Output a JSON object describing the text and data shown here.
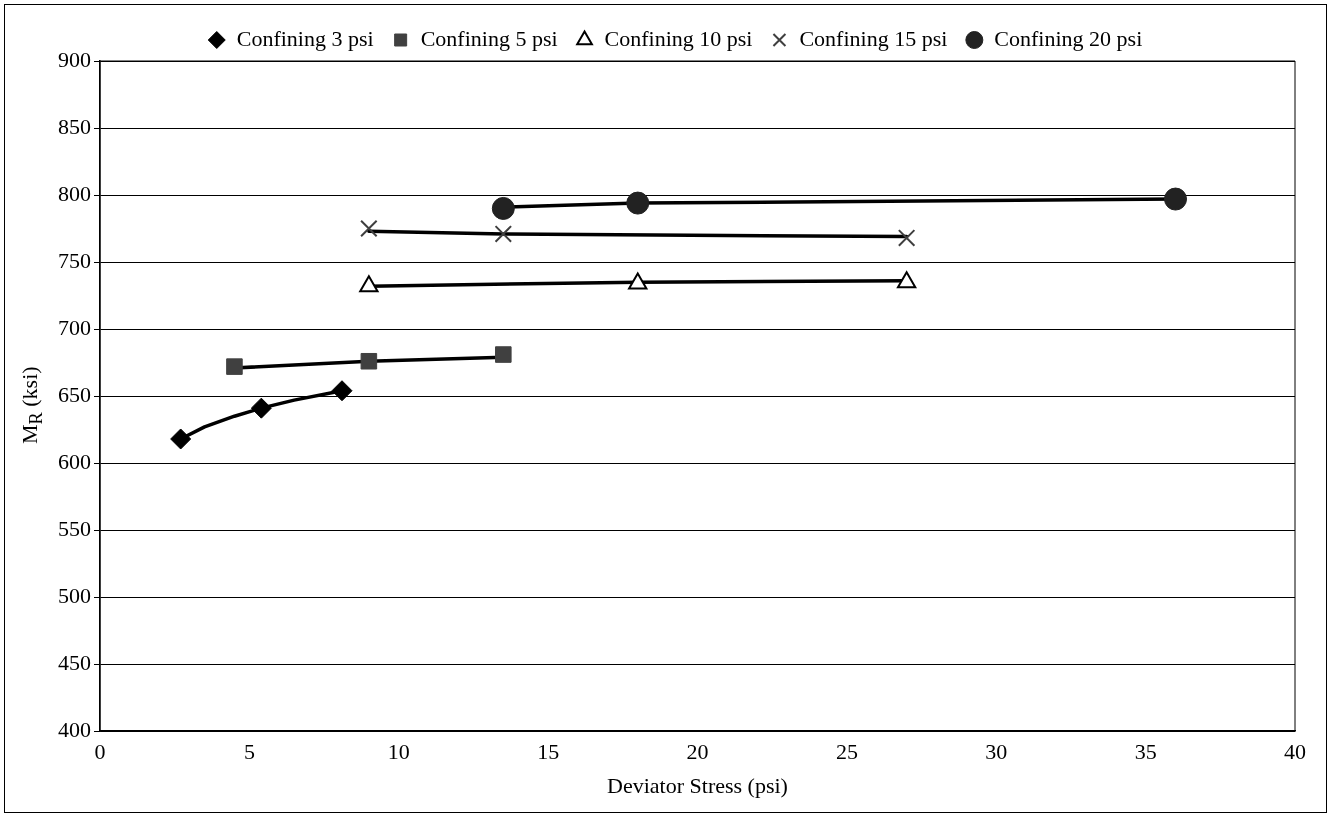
{
  "chart_data": {
    "type": "scatter",
    "xlabel": "Deviator Stress (psi)",
    "ylabel": "M$_{R}$ (ksi)",
    "xlim": [
      0,
      40
    ],
    "xticks": [
      0,
      5,
      10,
      15,
      20,
      25,
      30,
      35,
      40
    ],
    "ylim": [
      400,
      900
    ],
    "yticks": [
      400,
      450,
      500,
      550,
      600,
      650,
      700,
      750,
      800,
      850,
      900
    ],
    "grid": "y",
    "legend": "top",
    "series": [
      {
        "name": "Confining 3 psi",
        "color": "#000000",
        "marker": "diamond",
        "x": [
          2.7,
          5.4,
          8.1
        ],
        "values": [
          618,
          641,
          654
        ]
      },
      {
        "name": "Confining 5 psi",
        "color": "#404040",
        "marker": "square",
        "x": [
          4.5,
          9,
          13.5
        ],
        "values": [
          672,
          676,
          681
        ]
      },
      {
        "name": "Confining 10 psi",
        "color": "#000000",
        "marker": "triangle",
        "x": [
          9,
          18,
          27
        ],
        "values": [
          732,
          734,
          735
        ]
      },
      {
        "name": "Confining 15 psi",
        "color": "#404040",
        "marker": "cross",
        "x": [
          9,
          13.5,
          27
        ],
        "values": [
          775,
          771,
          768
        ]
      },
      {
        "name": "Confining 20 psi",
        "color": "#222222",
        "marker": "circle",
        "x": [
          13.5,
          18,
          36
        ],
        "values": [
          790,
          794,
          797
        ]
      },
      {
        "type": "line",
        "color": "#000000",
        "marker": "none",
        "x": [
          2.7,
          3.5,
          4.5,
          5.4,
          6.5,
          8.1
        ],
        "values": [
          618,
          627,
          635,
          641,
          647,
          654
        ]
      },
      {
        "type": "line",
        "color": "#000000",
        "marker": "none",
        "x": [
          4.5,
          9,
          13.5
        ],
        "values": [
          671,
          676,
          679
        ]
      },
      {
        "type": "line",
        "color": "#000000",
        "marker": "none",
        "x": [
          9,
          18,
          27
        ],
        "values": [
          732,
          735,
          736
        ]
      },
      {
        "type": "line",
        "color": "#000000",
        "marker": "none",
        "x": [
          9,
          13.5,
          27
        ],
        "values": [
          773,
          771,
          769
        ]
      },
      {
        "type": "line",
        "color": "#000000",
        "marker": "none",
        "x": [
          13.5,
          18,
          36
        ],
        "values": [
          791,
          794,
          797
        ]
      }
    ]
  }
}
